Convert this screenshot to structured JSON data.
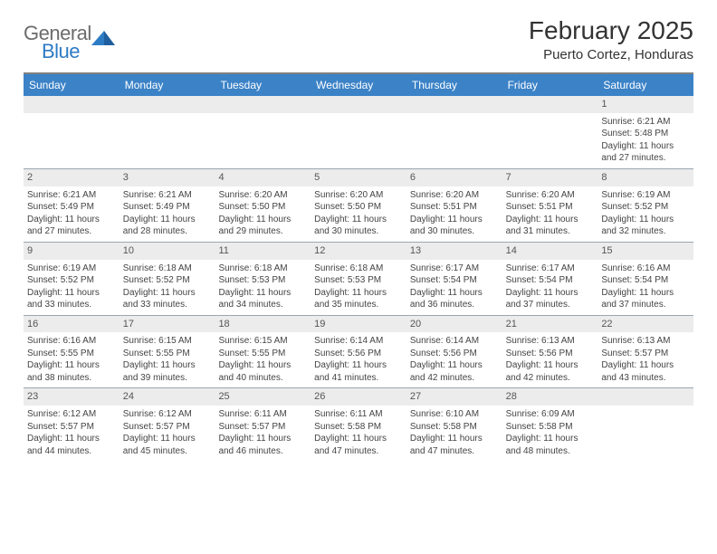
{
  "brand": {
    "part1": "General",
    "part2": "Blue",
    "text_color_general": "#6b6b6b",
    "text_color_blue": "#2d7bc4",
    "triangle_color": "#2d7bc4"
  },
  "title": "February 2025",
  "location": "Puerto Cortez, Honduras",
  "colors": {
    "header_bar": "#3b82c7",
    "header_text": "#ffffff",
    "daynum_bg": "#ececec",
    "divider": "#808080",
    "row_border": "#9aa6b2",
    "body_text": "#444444"
  },
  "day_headers": [
    "Sunday",
    "Monday",
    "Tuesday",
    "Wednesday",
    "Thursday",
    "Friday",
    "Saturday"
  ],
  "weeks": [
    [
      {
        "n": "",
        "sr": "",
        "ss": "",
        "dl": ""
      },
      {
        "n": "",
        "sr": "",
        "ss": "",
        "dl": ""
      },
      {
        "n": "",
        "sr": "",
        "ss": "",
        "dl": ""
      },
      {
        "n": "",
        "sr": "",
        "ss": "",
        "dl": ""
      },
      {
        "n": "",
        "sr": "",
        "ss": "",
        "dl": ""
      },
      {
        "n": "",
        "sr": "",
        "ss": "",
        "dl": ""
      },
      {
        "n": "1",
        "sr": "6:21 AM",
        "ss": "5:48 PM",
        "dl": "11 hours and 27 minutes."
      }
    ],
    [
      {
        "n": "2",
        "sr": "6:21 AM",
        "ss": "5:49 PM",
        "dl": "11 hours and 27 minutes."
      },
      {
        "n": "3",
        "sr": "6:21 AM",
        "ss": "5:49 PM",
        "dl": "11 hours and 28 minutes."
      },
      {
        "n": "4",
        "sr": "6:20 AM",
        "ss": "5:50 PM",
        "dl": "11 hours and 29 minutes."
      },
      {
        "n": "5",
        "sr": "6:20 AM",
        "ss": "5:50 PM",
        "dl": "11 hours and 30 minutes."
      },
      {
        "n": "6",
        "sr": "6:20 AM",
        "ss": "5:51 PM",
        "dl": "11 hours and 30 minutes."
      },
      {
        "n": "7",
        "sr": "6:20 AM",
        "ss": "5:51 PM",
        "dl": "11 hours and 31 minutes."
      },
      {
        "n": "8",
        "sr": "6:19 AM",
        "ss": "5:52 PM",
        "dl": "11 hours and 32 minutes."
      }
    ],
    [
      {
        "n": "9",
        "sr": "6:19 AM",
        "ss": "5:52 PM",
        "dl": "11 hours and 33 minutes."
      },
      {
        "n": "10",
        "sr": "6:18 AM",
        "ss": "5:52 PM",
        "dl": "11 hours and 33 minutes."
      },
      {
        "n": "11",
        "sr": "6:18 AM",
        "ss": "5:53 PM",
        "dl": "11 hours and 34 minutes."
      },
      {
        "n": "12",
        "sr": "6:18 AM",
        "ss": "5:53 PM",
        "dl": "11 hours and 35 minutes."
      },
      {
        "n": "13",
        "sr": "6:17 AM",
        "ss": "5:54 PM",
        "dl": "11 hours and 36 minutes."
      },
      {
        "n": "14",
        "sr": "6:17 AM",
        "ss": "5:54 PM",
        "dl": "11 hours and 37 minutes."
      },
      {
        "n": "15",
        "sr": "6:16 AM",
        "ss": "5:54 PM",
        "dl": "11 hours and 37 minutes."
      }
    ],
    [
      {
        "n": "16",
        "sr": "6:16 AM",
        "ss": "5:55 PM",
        "dl": "11 hours and 38 minutes."
      },
      {
        "n": "17",
        "sr": "6:15 AM",
        "ss": "5:55 PM",
        "dl": "11 hours and 39 minutes."
      },
      {
        "n": "18",
        "sr": "6:15 AM",
        "ss": "5:55 PM",
        "dl": "11 hours and 40 minutes."
      },
      {
        "n": "19",
        "sr": "6:14 AM",
        "ss": "5:56 PM",
        "dl": "11 hours and 41 minutes."
      },
      {
        "n": "20",
        "sr": "6:14 AM",
        "ss": "5:56 PM",
        "dl": "11 hours and 42 minutes."
      },
      {
        "n": "21",
        "sr": "6:13 AM",
        "ss": "5:56 PM",
        "dl": "11 hours and 42 minutes."
      },
      {
        "n": "22",
        "sr": "6:13 AM",
        "ss": "5:57 PM",
        "dl": "11 hours and 43 minutes."
      }
    ],
    [
      {
        "n": "23",
        "sr": "6:12 AM",
        "ss": "5:57 PM",
        "dl": "11 hours and 44 minutes."
      },
      {
        "n": "24",
        "sr": "6:12 AM",
        "ss": "5:57 PM",
        "dl": "11 hours and 45 minutes."
      },
      {
        "n": "25",
        "sr": "6:11 AM",
        "ss": "5:57 PM",
        "dl": "11 hours and 46 minutes."
      },
      {
        "n": "26",
        "sr": "6:11 AM",
        "ss": "5:58 PM",
        "dl": "11 hours and 47 minutes."
      },
      {
        "n": "27",
        "sr": "6:10 AM",
        "ss": "5:58 PM",
        "dl": "11 hours and 47 minutes."
      },
      {
        "n": "28",
        "sr": "6:09 AM",
        "ss": "5:58 PM",
        "dl": "11 hours and 48 minutes."
      },
      {
        "n": "",
        "sr": "",
        "ss": "",
        "dl": ""
      }
    ]
  ],
  "labels": {
    "sunrise": "Sunrise:",
    "sunset": "Sunset:",
    "daylight": "Daylight:"
  }
}
